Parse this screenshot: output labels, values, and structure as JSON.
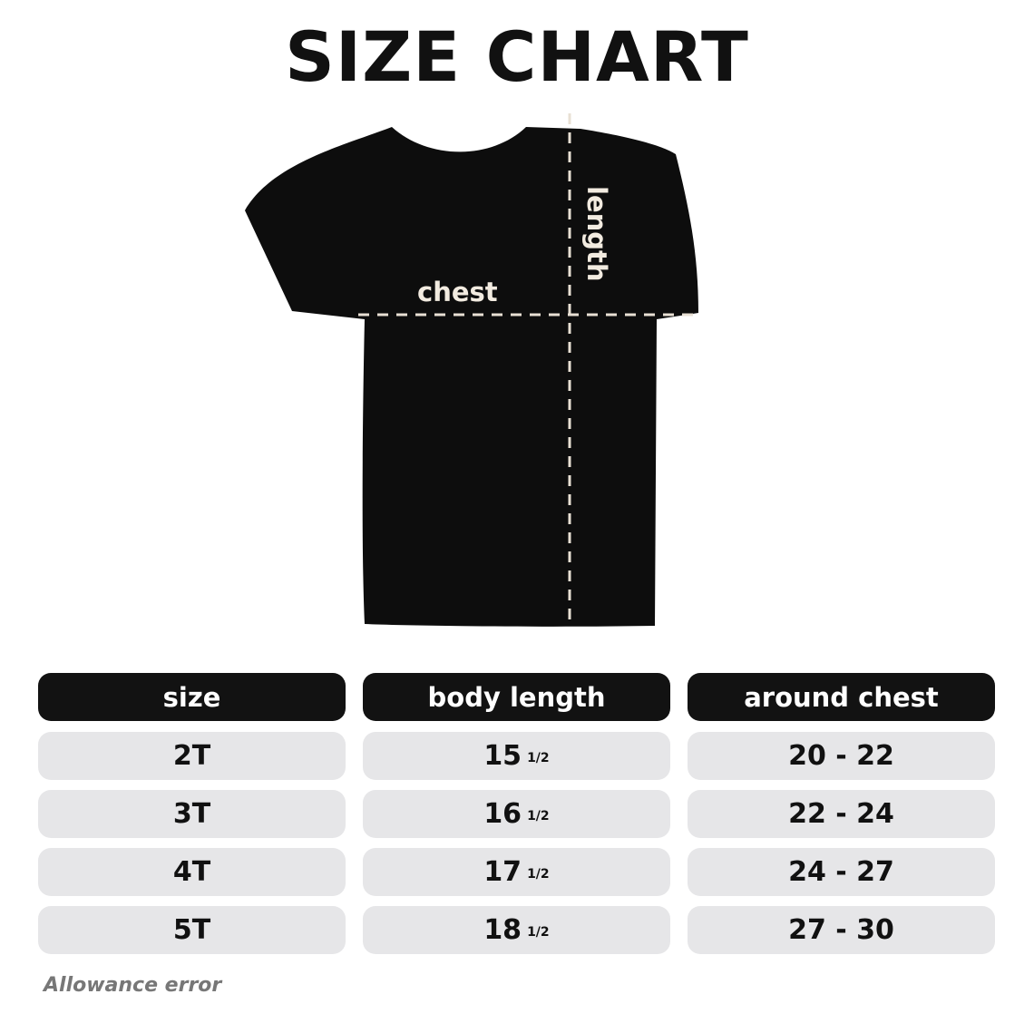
{
  "title": "SIZE CHART",
  "diagram": {
    "chest_label": "chest",
    "length_label": "length",
    "shirt_color": "#0d0d0d",
    "guide_color": "#e8e0d4"
  },
  "table": {
    "headers": [
      "size",
      "body length",
      "around chest"
    ],
    "rows": [
      {
        "size": "2T",
        "length": "15",
        "length_frac": "1/2",
        "chest": "20 - 22"
      },
      {
        "size": "3T",
        "length": "16",
        "length_frac": "1/2",
        "chest": "22 - 24"
      },
      {
        "size": "4T",
        "length": "17",
        "length_frac": "1/2",
        "chest": "24 - 27"
      },
      {
        "size": "5T",
        "length": "18",
        "length_frac": "1/2",
        "chest": "27 - 30"
      }
    ]
  },
  "note": "Allowance error"
}
